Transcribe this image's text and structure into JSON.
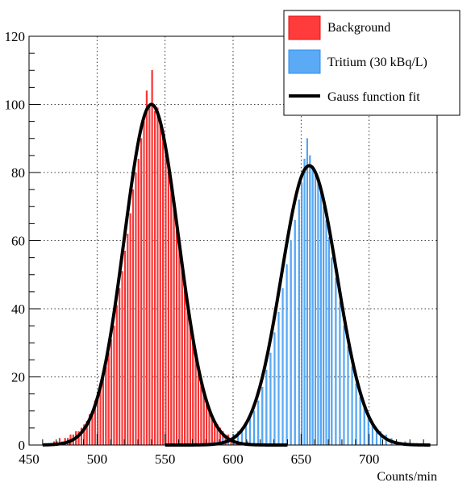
{
  "chart_data": {
    "type": "bar",
    "title": "",
    "xlabel": "Counts/min",
    "ylabel": "",
    "xlim": [
      450,
      750
    ],
    "ylim": [
      0,
      120
    ],
    "x_ticks": [
      450,
      500,
      550,
      600,
      650,
      700
    ],
    "y_ticks": [
      0,
      20,
      40,
      60,
      80,
      100,
      120
    ],
    "grid": true,
    "legend_position": "top-right",
    "bin_width": 1,
    "series": [
      {
        "name": "Background",
        "kind": "histogram",
        "color": "#ff3b3b",
        "edge_color": "#e81010",
        "bins": [
          [
            468,
            1
          ],
          [
            470,
            1
          ],
          [
            472,
            2
          ],
          [
            474,
            1
          ],
          [
            476,
            2
          ],
          [
            478,
            2
          ],
          [
            480,
            3
          ],
          [
            482,
            3
          ],
          [
            484,
            4
          ],
          [
            486,
            4
          ],
          [
            488,
            5
          ],
          [
            490,
            6
          ],
          [
            492,
            7
          ],
          [
            494,
            9
          ],
          [
            496,
            10
          ],
          [
            498,
            13
          ],
          [
            500,
            15
          ],
          [
            502,
            17
          ],
          [
            504,
            21
          ],
          [
            506,
            23
          ],
          [
            508,
            27
          ],
          [
            510,
            31
          ],
          [
            512,
            35
          ],
          [
            514,
            41
          ],
          [
            516,
            46
          ],
          [
            518,
            51
          ],
          [
            520,
            57
          ],
          [
            522,
            62
          ],
          [
            524,
            68
          ],
          [
            526,
            75
          ],
          [
            528,
            80
          ],
          [
            530,
            84
          ],
          [
            532,
            90
          ],
          [
            534,
            95
          ],
          [
            536,
            104
          ],
          [
            538,
            100
          ],
          [
            540,
            110
          ],
          [
            542,
            98
          ],
          [
            544,
            99
          ],
          [
            546,
            95
          ],
          [
            548,
            92
          ],
          [
            550,
            87
          ],
          [
            552,
            83
          ],
          [
            554,
            78
          ],
          [
            556,
            72
          ],
          [
            558,
            66
          ],
          [
            560,
            61
          ],
          [
            562,
            54
          ],
          [
            564,
            47
          ],
          [
            566,
            42
          ],
          [
            568,
            36
          ],
          [
            570,
            30
          ],
          [
            572,
            27
          ],
          [
            574,
            22
          ],
          [
            576,
            19
          ],
          [
            578,
            15
          ],
          [
            580,
            13
          ],
          [
            582,
            10
          ],
          [
            584,
            8
          ],
          [
            586,
            7
          ],
          [
            588,
            6
          ],
          [
            590,
            5
          ],
          [
            592,
            4
          ],
          [
            594,
            3
          ],
          [
            596,
            3
          ],
          [
            598,
            2
          ],
          [
            600,
            2
          ],
          [
            602,
            1
          ],
          [
            606,
            1
          ],
          [
            610,
            1
          ]
        ]
      },
      {
        "name": "Tritium (30 kBq/L)",
        "kind": "histogram",
        "color": "#5aaaf6",
        "edge_color": "#2f8fe8",
        "bins": [
          [
            585,
            1
          ],
          [
            588,
            1
          ],
          [
            592,
            2
          ],
          [
            596,
            2
          ],
          [
            600,
            3
          ],
          [
            603,
            4
          ],
          [
            606,
            5
          ],
          [
            609,
            6
          ],
          [
            612,
            8
          ],
          [
            615,
            10
          ],
          [
            618,
            13
          ],
          [
            621,
            17
          ],
          [
            624,
            22
          ],
          [
            627,
            27
          ],
          [
            630,
            33
          ],
          [
            633,
            39
          ],
          [
            636,
            46
          ],
          [
            639,
            53
          ],
          [
            642,
            60
          ],
          [
            645,
            66
          ],
          [
            648,
            72
          ],
          [
            650,
            77
          ],
          [
            652,
            84
          ],
          [
            654,
            90
          ],
          [
            656,
            85
          ],
          [
            658,
            82
          ],
          [
            660,
            80
          ],
          [
            662,
            78
          ],
          [
            664,
            74
          ],
          [
            666,
            70
          ],
          [
            668,
            66
          ],
          [
            670,
            61
          ],
          [
            672,
            55
          ],
          [
            675,
            49
          ],
          [
            678,
            42
          ],
          [
            681,
            35
          ],
          [
            684,
            29
          ],
          [
            687,
            23
          ],
          [
            690,
            18
          ],
          [
            693,
            14
          ],
          [
            696,
            11
          ],
          [
            699,
            8
          ],
          [
            702,
            6
          ],
          [
            705,
            5
          ],
          [
            708,
            4
          ],
          [
            712,
            3
          ],
          [
            716,
            2
          ],
          [
            720,
            1
          ],
          [
            726,
            1
          ]
        ]
      },
      {
        "name": "Gauss function fit",
        "kind": "fit",
        "color": "#000000",
        "curves": [
          {
            "amplitude": 100,
            "mean": 540,
            "sigma": 20,
            "range": [
              460,
              640
            ]
          },
          {
            "amplitude": 82,
            "mean": 656,
            "sigma": 20.5,
            "range": [
              550,
              745
            ]
          }
        ]
      }
    ]
  }
}
